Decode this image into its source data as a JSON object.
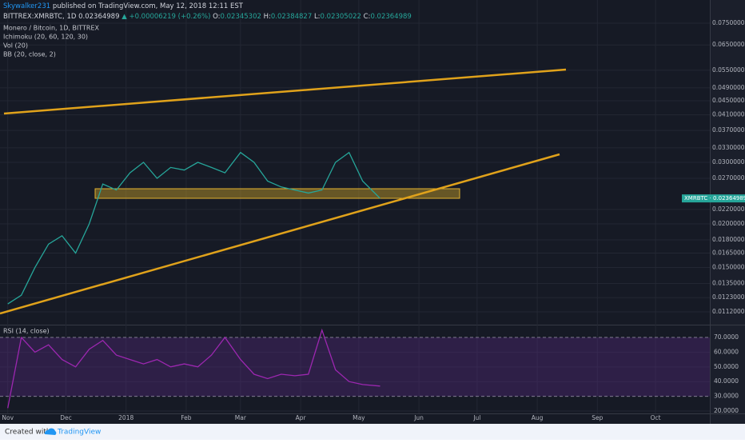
{
  "header": {
    "author": "Skywalker231",
    "published": "published on TradingView.com, May 12, 2018 12:11 EST",
    "symbol": "BITTREX:XMRBTC, 1D",
    "last": "0.02364989",
    "change": "▲ +0.00006219 (+0.26%)",
    "open_label": "O:",
    "open": "0.02345302",
    "high_label": "H:",
    "high": "0.02384827",
    "low_label": "L:",
    "low": "0.02305022",
    "close_label": "C:",
    "close": "0.02364989",
    "indicators": [
      "Ichimoku (20, 60, 120, 30)",
      "Vol (20)",
      "BB (20, close, 2)"
    ]
  },
  "footer": {
    "created": "Created with",
    "brand": "TradingView"
  },
  "chart_data": {
    "type": "line",
    "title": "Monero / Bitcoin, 1D, BITTREX",
    "log_scale": true,
    "grid": true,
    "x": [
      "2017-11-01",
      "2017-11-08",
      "2017-11-15",
      "2017-11-22",
      "2017-11-29",
      "2017-12-06",
      "2017-12-13",
      "2017-12-20",
      "2017-12-27",
      "2018-01-03",
      "2018-01-10",
      "2018-01-17",
      "2018-01-24",
      "2018-01-31",
      "2018-02-07",
      "2018-02-14",
      "2018-02-21",
      "2018-03-01",
      "2018-03-08",
      "2018-03-15",
      "2018-03-22",
      "2018-03-29",
      "2018-04-05",
      "2018-04-12",
      "2018-04-19",
      "2018-04-26",
      "2018-05-03",
      "2018-05-12"
    ],
    "series": [
      {
        "name": "XMRBTC",
        "color": "#26a69a",
        "values": [
          0.0118,
          0.0125,
          0.015,
          0.0175,
          0.0185,
          0.0165,
          0.02,
          0.026,
          0.025,
          0.028,
          0.03,
          0.027,
          0.029,
          0.0285,
          0.03,
          0.029,
          0.028,
          0.032,
          0.03,
          0.0265,
          0.0255,
          0.025,
          0.0245,
          0.025,
          0.03,
          0.032,
          0.0265,
          0.02364989
        ]
      },
      {
        "name": "RSI (14, close)",
        "color": "#9c27b0",
        "axis": "y2",
        "values": [
          22,
          70,
          60,
          65,
          55,
          50,
          62,
          68,
          58,
          55,
          52,
          55,
          50,
          52,
          50,
          58,
          70,
          55,
          45,
          42,
          45,
          44,
          45,
          75,
          48,
          40,
          38,
          37
        ]
      }
    ],
    "xlim": [
      "2017-10-28",
      "2018-10-29"
    ],
    "xticks": [
      {
        "value": "2017-11-01",
        "label": "Nov"
      },
      {
        "value": "2017-12-01",
        "label": "Dec"
      },
      {
        "value": "2018-01-01",
        "label": "2018"
      },
      {
        "value": "2018-02-01",
        "label": "Feb"
      },
      {
        "value": "2018-03-01",
        "label": "Mar"
      },
      {
        "value": "2018-04-01",
        "label": "Apr"
      },
      {
        "value": "2018-05-01",
        "label": "May"
      },
      {
        "value": "2018-06-01",
        "label": "Jun"
      },
      {
        "value": "2018-07-01",
        "label": "Jul"
      },
      {
        "value": "2018-08-01",
        "label": "Aug"
      },
      {
        "value": "2018-09-01",
        "label": "Sep"
      },
      {
        "value": "2018-10-01",
        "label": "Oct"
      }
    ],
    "ylim": [
      0.01035,
      0.0874
    ],
    "yticks": [
      {
        "value": 0.075,
        "label": "0.07500000"
      },
      {
        "value": 0.065,
        "label": "0.06500000"
      },
      {
        "value": 0.055,
        "label": "0.05500000"
      },
      {
        "value": 0.049,
        "label": "0.04900000"
      },
      {
        "value": 0.045,
        "label": "0.04500000"
      },
      {
        "value": 0.041,
        "label": "0.04100000"
      },
      {
        "value": 0.037,
        "label": "0.03700000"
      },
      {
        "value": 0.033,
        "label": "0.03300000"
      },
      {
        "value": 0.03,
        "label": "0.03000000"
      },
      {
        "value": 0.027,
        "label": "0.02700000"
      },
      {
        "value": 0.022,
        "label": "0.02200000"
      },
      {
        "value": 0.02,
        "label": "0.02000000"
      },
      {
        "value": 0.018,
        "label": "0.01800000"
      },
      {
        "value": 0.0165,
        "label": "0.01650000"
      },
      {
        "value": 0.015,
        "label": "0.01500000"
      },
      {
        "value": 0.0135,
        "label": "0.01350000"
      },
      {
        "value": 0.0123,
        "label": "0.01230000"
      },
      {
        "value": 0.0112,
        "label": "0.01120000"
      }
    ],
    "y2lim": [
      18.4,
      77.6
    ],
    "y2ticks": [
      {
        "value": 70,
        "label": "70.0000"
      },
      {
        "value": 60,
        "label": "60.0000"
      },
      {
        "value": 50,
        "label": "50.0000"
      },
      {
        "value": 40,
        "label": "40.0000"
      },
      {
        "value": 30,
        "label": "30.0000"
      },
      {
        "value": 20,
        "label": "20.0000"
      }
    ]
  }
}
